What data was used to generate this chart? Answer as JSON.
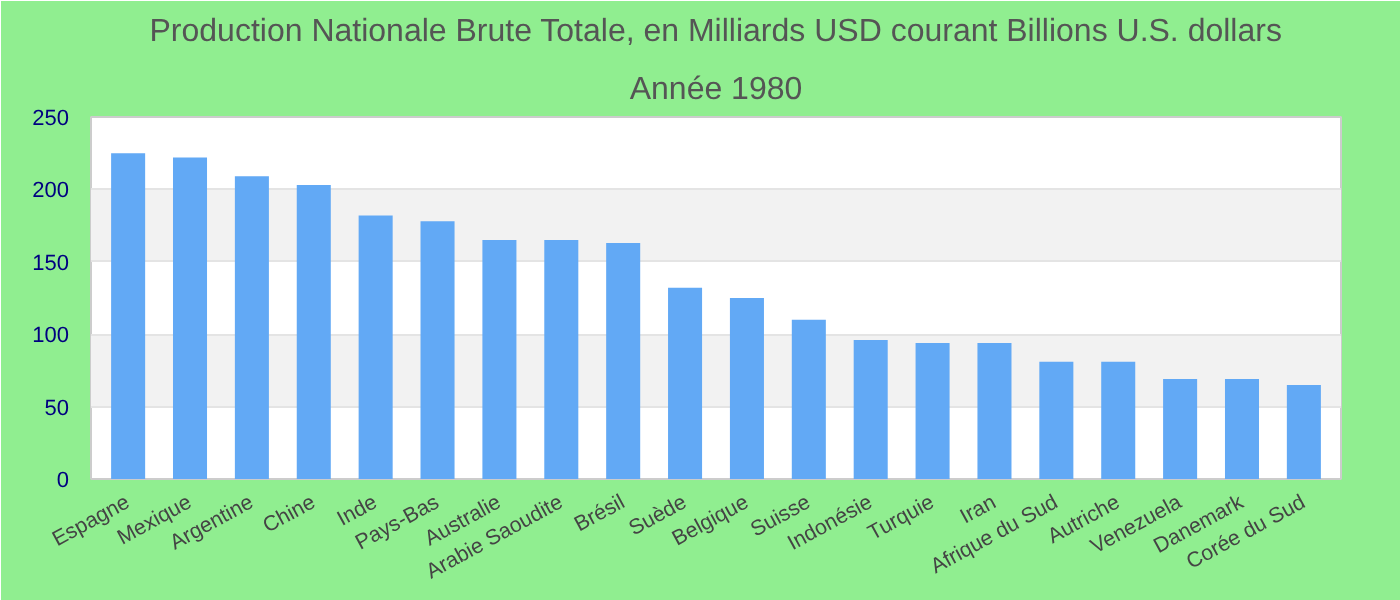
{
  "chart_data": {
    "type": "bar",
    "title": "Production Nationale Brute Totale, en Milliards USD courant Billions U.S. dollars",
    "subtitle": "Année 1980",
    "categories": [
      "Espagne",
      "Mexique",
      "Argentine",
      "Chine",
      "Inde",
      "Pays-Bas",
      "Australie",
      "Arabie Saoudite",
      "Brésil",
      "Suède",
      "Belgique",
      "Suisse",
      "Indonésie",
      "Turquie",
      "Iran",
      "Afrique du Sud",
      "Autriche",
      "Venezuela",
      "Danemark",
      "Corée du Sud"
    ],
    "values": [
      225,
      222,
      209,
      203,
      182,
      178,
      165,
      165,
      163,
      132,
      125,
      110,
      96,
      94,
      94,
      81,
      81,
      69,
      69,
      65
    ],
    "color": "#62a9f5",
    "ylim": [
      0,
      250
    ],
    "yticks": [
      0,
      50,
      100,
      150,
      200,
      250
    ],
    "grid": "y"
  }
}
